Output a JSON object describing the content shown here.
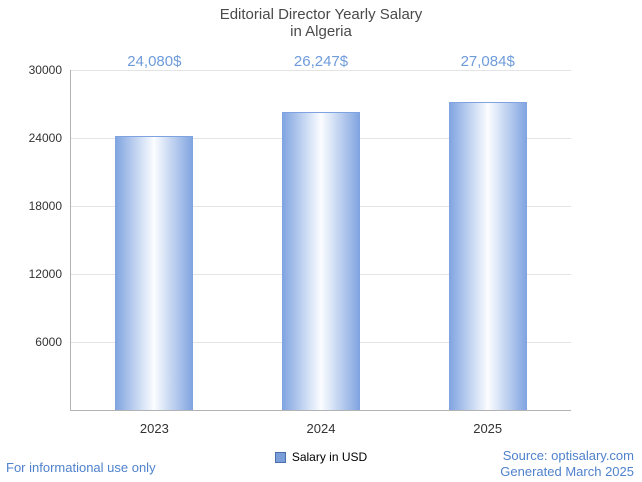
{
  "title": {
    "line1": "Editorial Director Yearly Salary",
    "line2": "in Algeria"
  },
  "chart_data": {
    "type": "bar",
    "title": "Editorial Director Yearly Salary in Algeria",
    "categories": [
      "2023",
      "2024",
      "2025"
    ],
    "values": [
      24080,
      26247,
      27084
    ],
    "value_labels": [
      "24,080$",
      "26,247$",
      "27,084$"
    ],
    "series_name": "Salary in USD",
    "xlabel": "",
    "ylabel": "",
    "ylim": [
      0,
      30000
    ],
    "yticks": [
      6000,
      12000,
      18000,
      24000,
      30000
    ],
    "grid": "horizontal",
    "legend_position": "bottom-center",
    "colors": {
      "bar_edge": "#7fa3e0",
      "bar_center": "#fbfdff",
      "value_label": "#6e9bdb",
      "legend_swatch": "#7b9ed8",
      "legend_swatch_border": "#4a6fae"
    }
  },
  "legend": {
    "label": "Salary in USD"
  },
  "footer": {
    "disclaimer": "For informational use only",
    "source": "Source: optisalary.com",
    "generated": "Generated March 2025",
    "link_color": "#4f82cc"
  }
}
